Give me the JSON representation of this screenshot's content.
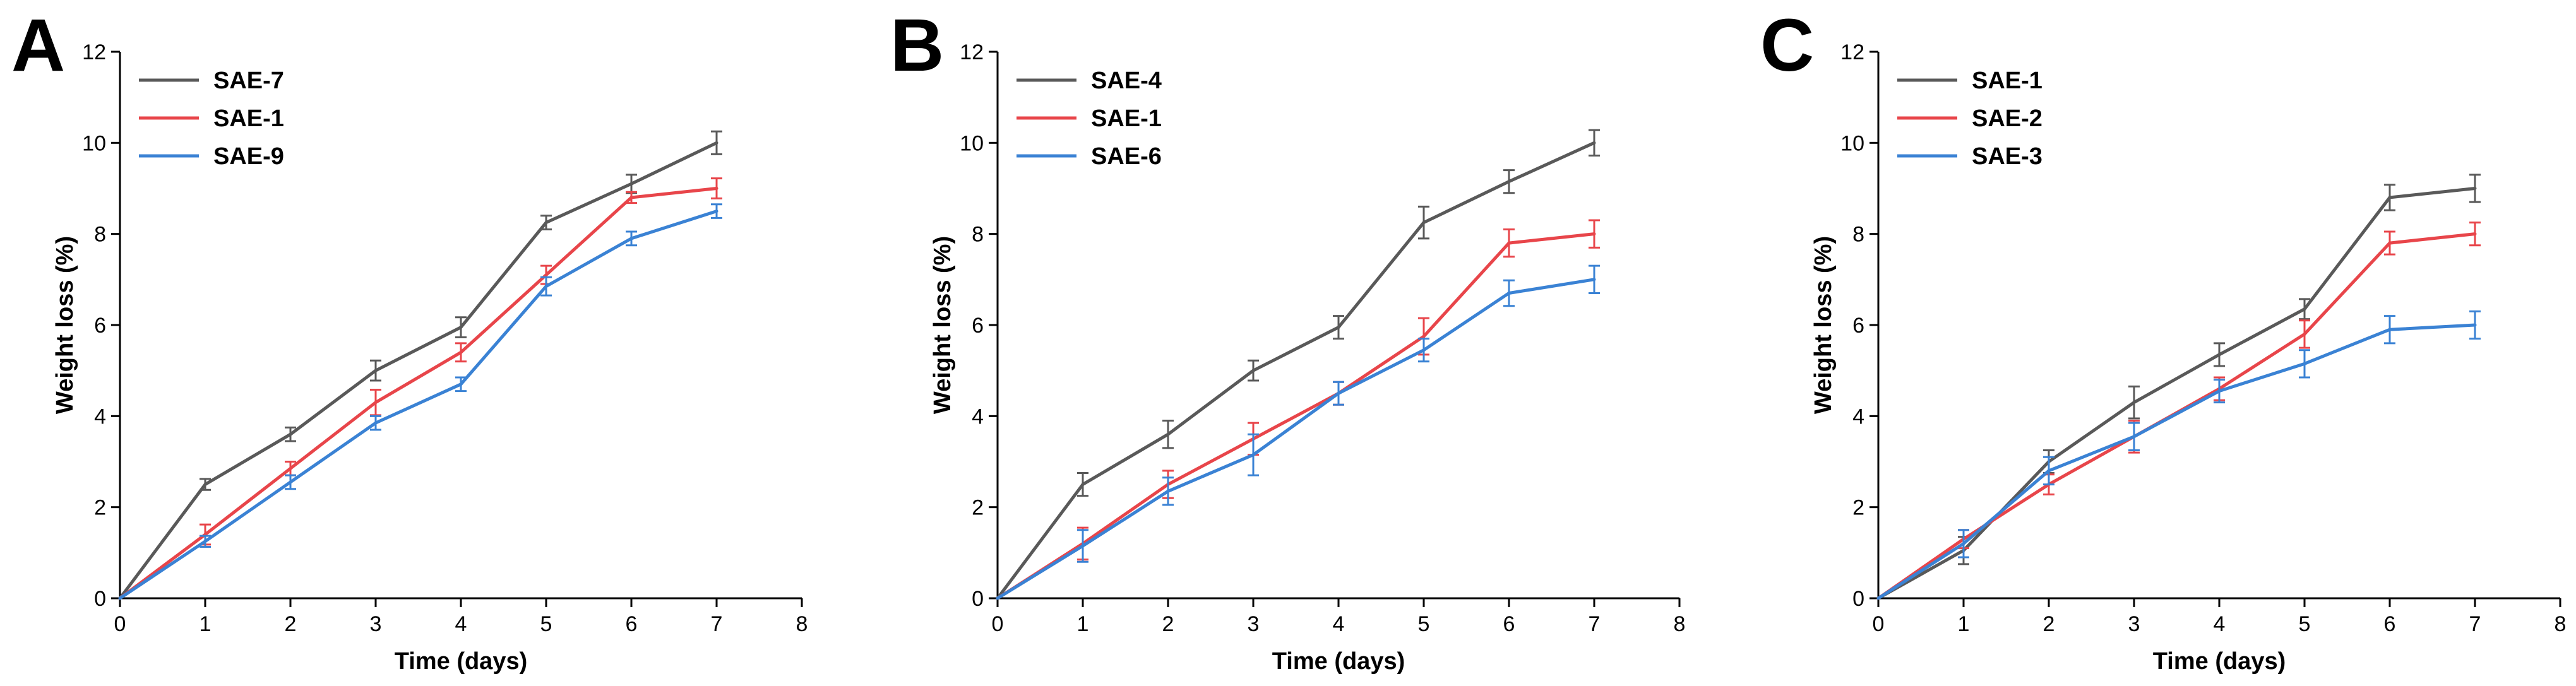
{
  "colors": {
    "axis": "#000000",
    "gray_series": "#595959",
    "red_series": "#e8454a",
    "blue_series": "#3a82d4"
  },
  "chart_data": [
    {
      "type": "line",
      "panel_label": "A",
      "title": "",
      "xlabel": "Time (days)",
      "ylabel": "Weight loss (%)",
      "xlim": [
        0,
        8
      ],
      "ylim": [
        0,
        12
      ],
      "xticks": [
        "0",
        "1",
        "2",
        "3",
        "4",
        "5",
        "6",
        "7",
        "8"
      ],
      "yticks": [
        "0",
        "2",
        "4",
        "6",
        "8",
        "10",
        "12"
      ],
      "legend_position": "top-left",
      "x": [
        0,
        1,
        2,
        3,
        4,
        5,
        6,
        7
      ],
      "series": [
        {
          "name": "SAE-7",
          "color": "#595959",
          "values": [
            0,
            2.5,
            3.6,
            5.0,
            5.95,
            8.25,
            9.1,
            10.0
          ],
          "errors": [
            0,
            0.12,
            0.15,
            0.22,
            0.22,
            0.15,
            0.2,
            0.25
          ]
        },
        {
          "name": "SAE-1",
          "color": "#e8454a",
          "values": [
            0,
            1.4,
            2.85,
            4.3,
            5.4,
            7.1,
            8.8,
            9.0
          ],
          "errors": [
            0,
            0.22,
            0.15,
            0.28,
            0.2,
            0.2,
            0.12,
            0.22
          ]
        },
        {
          "name": "SAE-9",
          "color": "#3a82d4",
          "values": [
            0,
            1.25,
            2.55,
            3.85,
            4.7,
            6.85,
            7.9,
            8.5
          ],
          "errors": [
            0,
            0.12,
            0.15,
            0.15,
            0.15,
            0.2,
            0.15,
            0.15
          ]
        }
      ]
    },
    {
      "type": "line",
      "panel_label": "B",
      "title": "",
      "xlabel": "Time (days)",
      "ylabel": "Weight loss (%)",
      "xlim": [
        0,
        8
      ],
      "ylim": [
        0,
        12
      ],
      "xticks": [
        "0",
        "1",
        "2",
        "3",
        "4",
        "5",
        "6",
        "7",
        "8"
      ],
      "yticks": [
        "0",
        "2",
        "4",
        "6",
        "8",
        "10",
        "12"
      ],
      "legend_position": "top-left",
      "x": [
        0,
        1,
        2,
        3,
        4,
        5,
        6,
        7
      ],
      "series": [
        {
          "name": "SAE-4",
          "color": "#595959",
          "values": [
            0,
            2.5,
            3.6,
            5.0,
            5.95,
            8.25,
            9.15,
            10.0
          ],
          "errors": [
            0,
            0.25,
            0.3,
            0.22,
            0.25,
            0.35,
            0.25,
            0.28
          ]
        },
        {
          "name": "SAE-1",
          "color": "#e8454a",
          "values": [
            0,
            1.2,
            2.5,
            3.5,
            4.5,
            5.75,
            7.8,
            8.0
          ],
          "errors": [
            0,
            0.35,
            0.3,
            0.35,
            0.25,
            0.4,
            0.3,
            0.3
          ]
        },
        {
          "name": "SAE-6",
          "color": "#3a82d4",
          "values": [
            0,
            1.15,
            2.35,
            3.15,
            4.5,
            5.45,
            6.7,
            7.0
          ],
          "errors": [
            0,
            0.35,
            0.3,
            0.45,
            0.25,
            0.25,
            0.28,
            0.3
          ]
        }
      ]
    },
    {
      "type": "line",
      "panel_label": "C",
      "title": "",
      "xlabel": "Time (days)",
      "ylabel": "Weight loss (%)",
      "xlim": [
        0,
        8
      ],
      "ylim": [
        0,
        12
      ],
      "xticks": [
        "0",
        "1",
        "2",
        "3",
        "4",
        "5",
        "6",
        "7",
        "8"
      ],
      "yticks": [
        "0",
        "2",
        "4",
        "6",
        "8",
        "10",
        "12"
      ],
      "legend_position": "top-left",
      "x": [
        0,
        1,
        2,
        3,
        4,
        5,
        6,
        7
      ],
      "series": [
        {
          "name": "SAE-1",
          "color": "#595959",
          "values": [
            0,
            1.05,
            3.0,
            4.3,
            5.35,
            6.35,
            8.8,
            9.0
          ],
          "errors": [
            0,
            0.3,
            0.25,
            0.35,
            0.25,
            0.22,
            0.28,
            0.3
          ]
        },
        {
          "name": "SAE-2",
          "color": "#e8454a",
          "values": [
            0,
            1.3,
            2.5,
            3.55,
            4.6,
            5.8,
            7.8,
            8.0
          ],
          "errors": [
            0,
            0.2,
            0.22,
            0.35,
            0.25,
            0.3,
            0.25,
            0.25
          ]
        },
        {
          "name": "SAE-3",
          "color": "#3a82d4",
          "values": [
            0,
            1.2,
            2.8,
            3.55,
            4.55,
            5.15,
            5.9,
            6.0
          ],
          "errors": [
            0,
            0.3,
            0.3,
            0.3,
            0.25,
            0.3,
            0.3,
            0.3
          ]
        }
      ]
    }
  ]
}
